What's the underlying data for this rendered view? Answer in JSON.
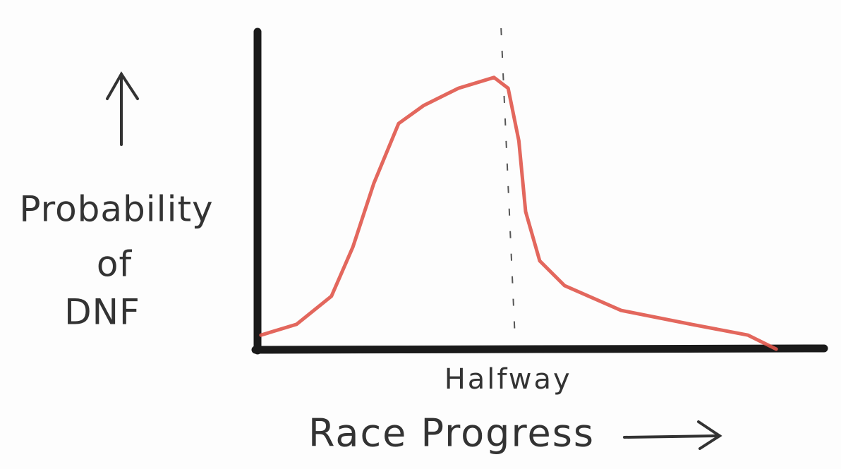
{
  "chart_data": {
    "type": "line",
    "y_label_lines": [
      "Probability",
      "of",
      "DNF"
    ],
    "x_label": "Race Progress",
    "annotation": {
      "x": 44.4,
      "label": "Halfway"
    },
    "xlim": [
      0,
      100
    ],
    "ylim": [
      0,
      100
    ],
    "x": [
      0.6,
      6.9,
      13.1,
      16.9,
      20.6,
      25,
      29.4,
      35.6,
      41.9,
      44.4,
      46.3,
      47.5,
      50,
      54.4,
      64.4,
      76.9,
      86.9,
      91.9
    ],
    "series": [
      {
        "color": "#e0574b",
        "values": [
          4.4,
          7.8,
          16.7,
          32.2,
          52.2,
          71.1,
          76.7,
          82.2,
          85.6,
          82.2,
          65.6,
          43.3,
          27.8,
          20,
          12.2,
          7.8,
          4.4,
          0
        ]
      }
    ]
  }
}
